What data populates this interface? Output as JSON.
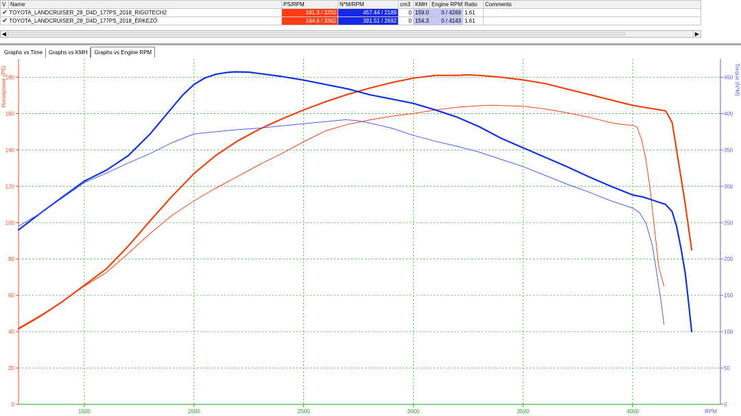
{
  "table": {
    "headers": [
      "V",
      "Name",
      "PS/RPM",
      "N*M/RPM",
      "cm3",
      "KMH",
      "Engine RPM",
      "Ratio",
      "Comments"
    ],
    "rows": [
      {
        "name": "TOYOTA_LANDCRUISER_28_D4D_177PS_2018_RIGOTECH2",
        "ps_rpm": "181.3 / 3250",
        "nm_rpm": "457.44 / 2189",
        "cm3": "0",
        "kmh": "159.0",
        "engine_rpm": "0 / 4269",
        "ratio": "1.61",
        "comments": ""
      },
      {
        "name": "TOYOTA_LANDCRUISER_28_D4D_177PS_2018_ÉRKEZŐ",
        "ps_rpm": "164.6 / 3362",
        "nm_rpm": "391.51 / 2692",
        "cm3": "0",
        "kmh": "154.3",
        "engine_rpm": "0 / 4143",
        "ratio": "1.61",
        "comments": ""
      }
    ]
  },
  "scrollbar": {
    "left_arrow": "◀",
    "right_arrow": "▶"
  },
  "tabs": [
    {
      "label": "Graphs vs Time",
      "active": false
    },
    {
      "label": "Graphs vs KMH",
      "active": false
    },
    {
      "label": "Graphs vs Engine RPM",
      "active": true
    }
  ],
  "colors": {
    "hp_axis": "#e8502a",
    "torque_axis": "#6060e0",
    "x_axis": "#20a020",
    "grid": "#22aa22",
    "hp_line": "#ee4411",
    "torque_line": "#1133dd",
    "torque_thin": "#4b5bea"
  },
  "chart_data": {
    "type": "line",
    "xlabel": "RPM",
    "ylabel": "Horsepower (PS)",
    "y2label": "Torque (N*M)",
    "xlim": [
      1200,
      4400
    ],
    "ylim": [
      0,
      190
    ],
    "y2lim": [
      0,
      475
    ],
    "xticks": [
      1500,
      2000,
      2500,
      3000,
      3500,
      4000
    ],
    "yticks": [
      0,
      20,
      40,
      60,
      80,
      100,
      120,
      140,
      160,
      180
    ],
    "y2ticks": [
      0,
      50,
      100,
      150,
      200,
      250,
      300,
      350,
      400,
      450
    ],
    "grid": true,
    "series": [
      {
        "name": "TOYOTA_LANDCRUISER_28_D4D_177PS_2018_RIGOTECH2 PS",
        "axis": "left",
        "width": 2.2,
        "color": "#ee4411",
        "x": [
          1200,
          1300,
          1400,
          1500,
          1600,
          1700,
          1800,
          1900,
          2000,
          2100,
          2200,
          2300,
          2400,
          2500,
          2600,
          2700,
          2800,
          2900,
          3000,
          3100,
          3200,
          3250,
          3300,
          3400,
          3500,
          3600,
          3700,
          3800,
          3900,
          4000,
          4050,
          4100,
          4150,
          4180,
          4200,
          4220,
          4240,
          4255,
          4269
        ],
        "y": [
          41.5,
          48.5,
          56.5,
          65.5,
          74.5,
          87.0,
          101.0,
          114.5,
          127.0,
          137.0,
          145.0,
          151.5,
          157.0,
          162.0,
          166.5,
          170.5,
          174.0,
          177.0,
          179.5,
          181.0,
          181.0,
          181.3,
          181.0,
          180.0,
          178.5,
          176.5,
          173.5,
          170.5,
          167.5,
          164.5,
          163.5,
          162.5,
          161.5,
          155.0,
          140.0,
          125.0,
          110.0,
          97.0,
          85.0
        ]
      },
      {
        "name": "TOYOTA_LANDCRUISER_28_D4D_177PS_2018_ÉRKEZŐ PS",
        "axis": "left",
        "width": 1.0,
        "color": "#ee4411",
        "x": [
          1200,
          1300,
          1400,
          1500,
          1600,
          1700,
          1800,
          1900,
          2000,
          2100,
          2200,
          2300,
          2400,
          2500,
          2600,
          2700,
          2800,
          2900,
          3000,
          3100,
          3200,
          3300,
          3362,
          3400,
          3500,
          3600,
          3700,
          3800,
          3900,
          3950,
          4000,
          4020,
          4040,
          4060,
          4080,
          4100,
          4120,
          4143
        ],
        "y": [
          42.0,
          49.0,
          56.5,
          65.0,
          72.5,
          83.0,
          94.0,
          104.0,
          112.0,
          119.0,
          125.5,
          132.0,
          138.0,
          144.5,
          150.5,
          154.0,
          156.5,
          158.5,
          160.0,
          162.0,
          163.5,
          164.3,
          164.6,
          164.4,
          164.0,
          162.5,
          160.5,
          158.0,
          155.0,
          154.0,
          153.5,
          152.5,
          146.0,
          135.0,
          118.0,
          96.0,
          75.0,
          65.0
        ]
      },
      {
        "name": "TOYOTA_LANDCRUISER_28_D4D_177PS_2018_RIGOTECH2 N*M",
        "axis": "right",
        "width": 2.2,
        "color": "#1133dd",
        "x": [
          1200,
          1300,
          1400,
          1500,
          1600,
          1700,
          1800,
          1900,
          1950,
          2000,
          2050,
          2100,
          2150,
          2189,
          2250,
          2300,
          2400,
          2500,
          2600,
          2700,
          2800,
          2900,
          3000,
          3100,
          3200,
          3300,
          3400,
          3500,
          3600,
          3700,
          3800,
          3900,
          4000,
          4050,
          4100,
          4150,
          4180,
          4200,
          4220,
          4240,
          4255,
          4269
        ],
        "y": [
          240.0,
          263.0,
          285.0,
          307.0,
          322.0,
          342.0,
          372.0,
          408.0,
          426.0,
          440.0,
          449.0,
          454.0,
          456.5,
          457.44,
          457.0,
          455.0,
          451.0,
          446.0,
          440.0,
          434.0,
          426.0,
          420.0,
          414.0,
          405.0,
          395.0,
          382.0,
          366.0,
          353.0,
          340.0,
          327.0,
          313.0,
          300.0,
          288.0,
          285.0,
          280.0,
          275.0,
          265.0,
          245.0,
          215.0,
          180.0,
          140.0,
          100.0
        ]
      },
      {
        "name": "TOYOTA_LANDCRUISER_28_D4D_177PS_2018_ÉRKEZŐ N*M",
        "axis": "right",
        "width": 1.0,
        "color": "#4b5bea",
        "x": [
          1200,
          1300,
          1400,
          1500,
          1600,
          1700,
          1800,
          1900,
          2000,
          2100,
          2200,
          2300,
          2400,
          2500,
          2600,
          2692,
          2750,
          2800,
          2900,
          3000,
          3100,
          3200,
          3300,
          3400,
          3500,
          3600,
          3700,
          3800,
          3900,
          4000,
          4030,
          4060,
          4090,
          4110,
          4130,
          4143
        ],
        "y": [
          245.0,
          263.0,
          284.0,
          305.0,
          318.0,
          332.0,
          345.0,
          360.0,
          372.0,
          375.0,
          378.0,
          380.0,
          383.0,
          386.0,
          389.0,
          391.51,
          390.0,
          387.0,
          380.0,
          370.0,
          362.0,
          355.0,
          347.0,
          337.0,
          327.0,
          315.0,
          303.0,
          292.0,
          280.0,
          270.0,
          264.0,
          250.0,
          218.0,
          180.0,
          140.0,
          110.0
        ]
      }
    ]
  }
}
